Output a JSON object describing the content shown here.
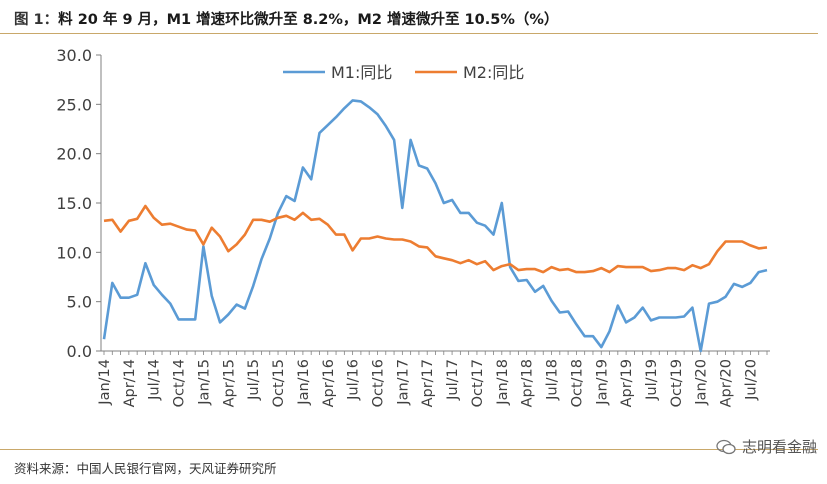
{
  "header": {
    "figure_label": "图 1：",
    "title": "料 20 年 9 月，M1 增速环比微升至 8.2%，M2 增速微升至 10.5%（%）"
  },
  "footer": {
    "source": "资料来源：中国人民银行官网，天风证券研究所",
    "watermark": "志明看金融"
  },
  "colors": {
    "m1": "#5b9bd5",
    "m2": "#ed7d31",
    "axis": "#808080",
    "rule": "#c9a86a"
  },
  "chart_data": {
    "type": "line",
    "title": "",
    "xlabel": "",
    "ylabel": "",
    "ylim": [
      0,
      30
    ],
    "yticks": [
      "0.0",
      "5.0",
      "10.0",
      "15.0",
      "20.0",
      "25.0",
      "30.0"
    ],
    "ytick_values": [
      0,
      5,
      10,
      15,
      20,
      25,
      30
    ],
    "legend_position": "top-center",
    "x_tick_labels": [
      {
        "index": 0,
        "label": "Jan/14"
      },
      {
        "index": 3,
        "label": "Apr/14"
      },
      {
        "index": 6,
        "label": "Jul/14"
      },
      {
        "index": 9,
        "label": "Oct/14"
      },
      {
        "index": 12,
        "label": "Jan/15"
      },
      {
        "index": 15,
        "label": "Apr/15"
      },
      {
        "index": 18,
        "label": "Jul/15"
      },
      {
        "index": 21,
        "label": "Oct/15"
      },
      {
        "index": 24,
        "label": "Jan/16"
      },
      {
        "index": 27,
        "label": "Apr/16"
      },
      {
        "index": 30,
        "label": "Jul/16"
      },
      {
        "index": 33,
        "label": "Oct/16"
      },
      {
        "index": 36,
        "label": "Jan/17"
      },
      {
        "index": 39,
        "label": "Apr/17"
      },
      {
        "index": 42,
        "label": "Jul/17"
      },
      {
        "index": 45,
        "label": "Oct/17"
      },
      {
        "index": 48,
        "label": "Jan/18"
      },
      {
        "index": 51,
        "label": "Apr/18"
      },
      {
        "index": 54,
        "label": "Jul/18"
      },
      {
        "index": 57,
        "label": "Oct/18"
      },
      {
        "index": 60,
        "label": "Jan/19"
      },
      {
        "index": 63,
        "label": "Apr/19"
      },
      {
        "index": 66,
        "label": "Jul/19"
      },
      {
        "index": 69,
        "label": "Oct/19"
      },
      {
        "index": 72,
        "label": "Jan/20"
      },
      {
        "index": 75,
        "label": "Apr/20"
      },
      {
        "index": 78,
        "label": "Jul/20"
      }
    ],
    "n_points": 81,
    "series": [
      {
        "name": "M1:同比",
        "color": "#5b9bd5",
        "values": [
          1.2,
          6.9,
          5.4,
          5.4,
          5.7,
          8.9,
          6.7,
          5.7,
          4.8,
          3.2,
          3.2,
          3.2,
          10.6,
          5.6,
          2.9,
          3.7,
          4.7,
          4.3,
          6.6,
          9.3,
          11.4,
          14.0,
          15.7,
          15.2,
          18.6,
          17.4,
          22.1,
          22.9,
          23.7,
          24.6,
          25.4,
          25.3,
          24.7,
          24.0,
          22.8,
          21.4,
          14.5,
          21.4,
          18.8,
          18.5,
          17.0,
          15.0,
          15.3,
          14.0,
          14.0,
          13.0,
          12.7,
          11.8,
          15.0,
          8.5,
          7.1,
          7.2,
          6.0,
          6.6,
          5.1,
          3.9,
          4.0,
          2.7,
          1.5,
          1.5,
          0.4,
          2.0,
          4.6,
          2.9,
          3.4,
          4.4,
          3.1,
          3.4,
          3.4,
          3.4,
          3.5,
          4.4,
          0.0,
          4.8,
          5.0,
          5.5,
          6.8,
          6.5,
          6.9,
          8.0,
          8.2
        ]
      },
      {
        "name": "M2:同比",
        "color": "#ed7d31",
        "values": [
          13.2,
          13.3,
          12.1,
          13.2,
          13.4,
          14.7,
          13.5,
          12.8,
          12.9,
          12.6,
          12.3,
          12.2,
          10.8,
          12.5,
          11.6,
          10.1,
          10.8,
          11.8,
          13.3,
          13.3,
          13.1,
          13.5,
          13.7,
          13.3,
          14.0,
          13.3,
          13.4,
          12.8,
          11.8,
          11.8,
          10.2,
          11.4,
          11.4,
          11.6,
          11.4,
          11.3,
          11.3,
          11.1,
          10.6,
          10.5,
          9.6,
          9.4,
          9.2,
          8.9,
          9.2,
          8.8,
          9.1,
          8.2,
          8.6,
          8.8,
          8.2,
          8.3,
          8.3,
          8.0,
          8.5,
          8.2,
          8.3,
          8.0,
          8.0,
          8.1,
          8.4,
          8.0,
          8.6,
          8.5,
          8.5,
          8.5,
          8.1,
          8.2,
          8.4,
          8.4,
          8.2,
          8.7,
          8.4,
          8.8,
          10.1,
          11.1,
          11.1,
          11.1,
          10.7,
          10.4,
          10.5
        ]
      }
    ]
  }
}
